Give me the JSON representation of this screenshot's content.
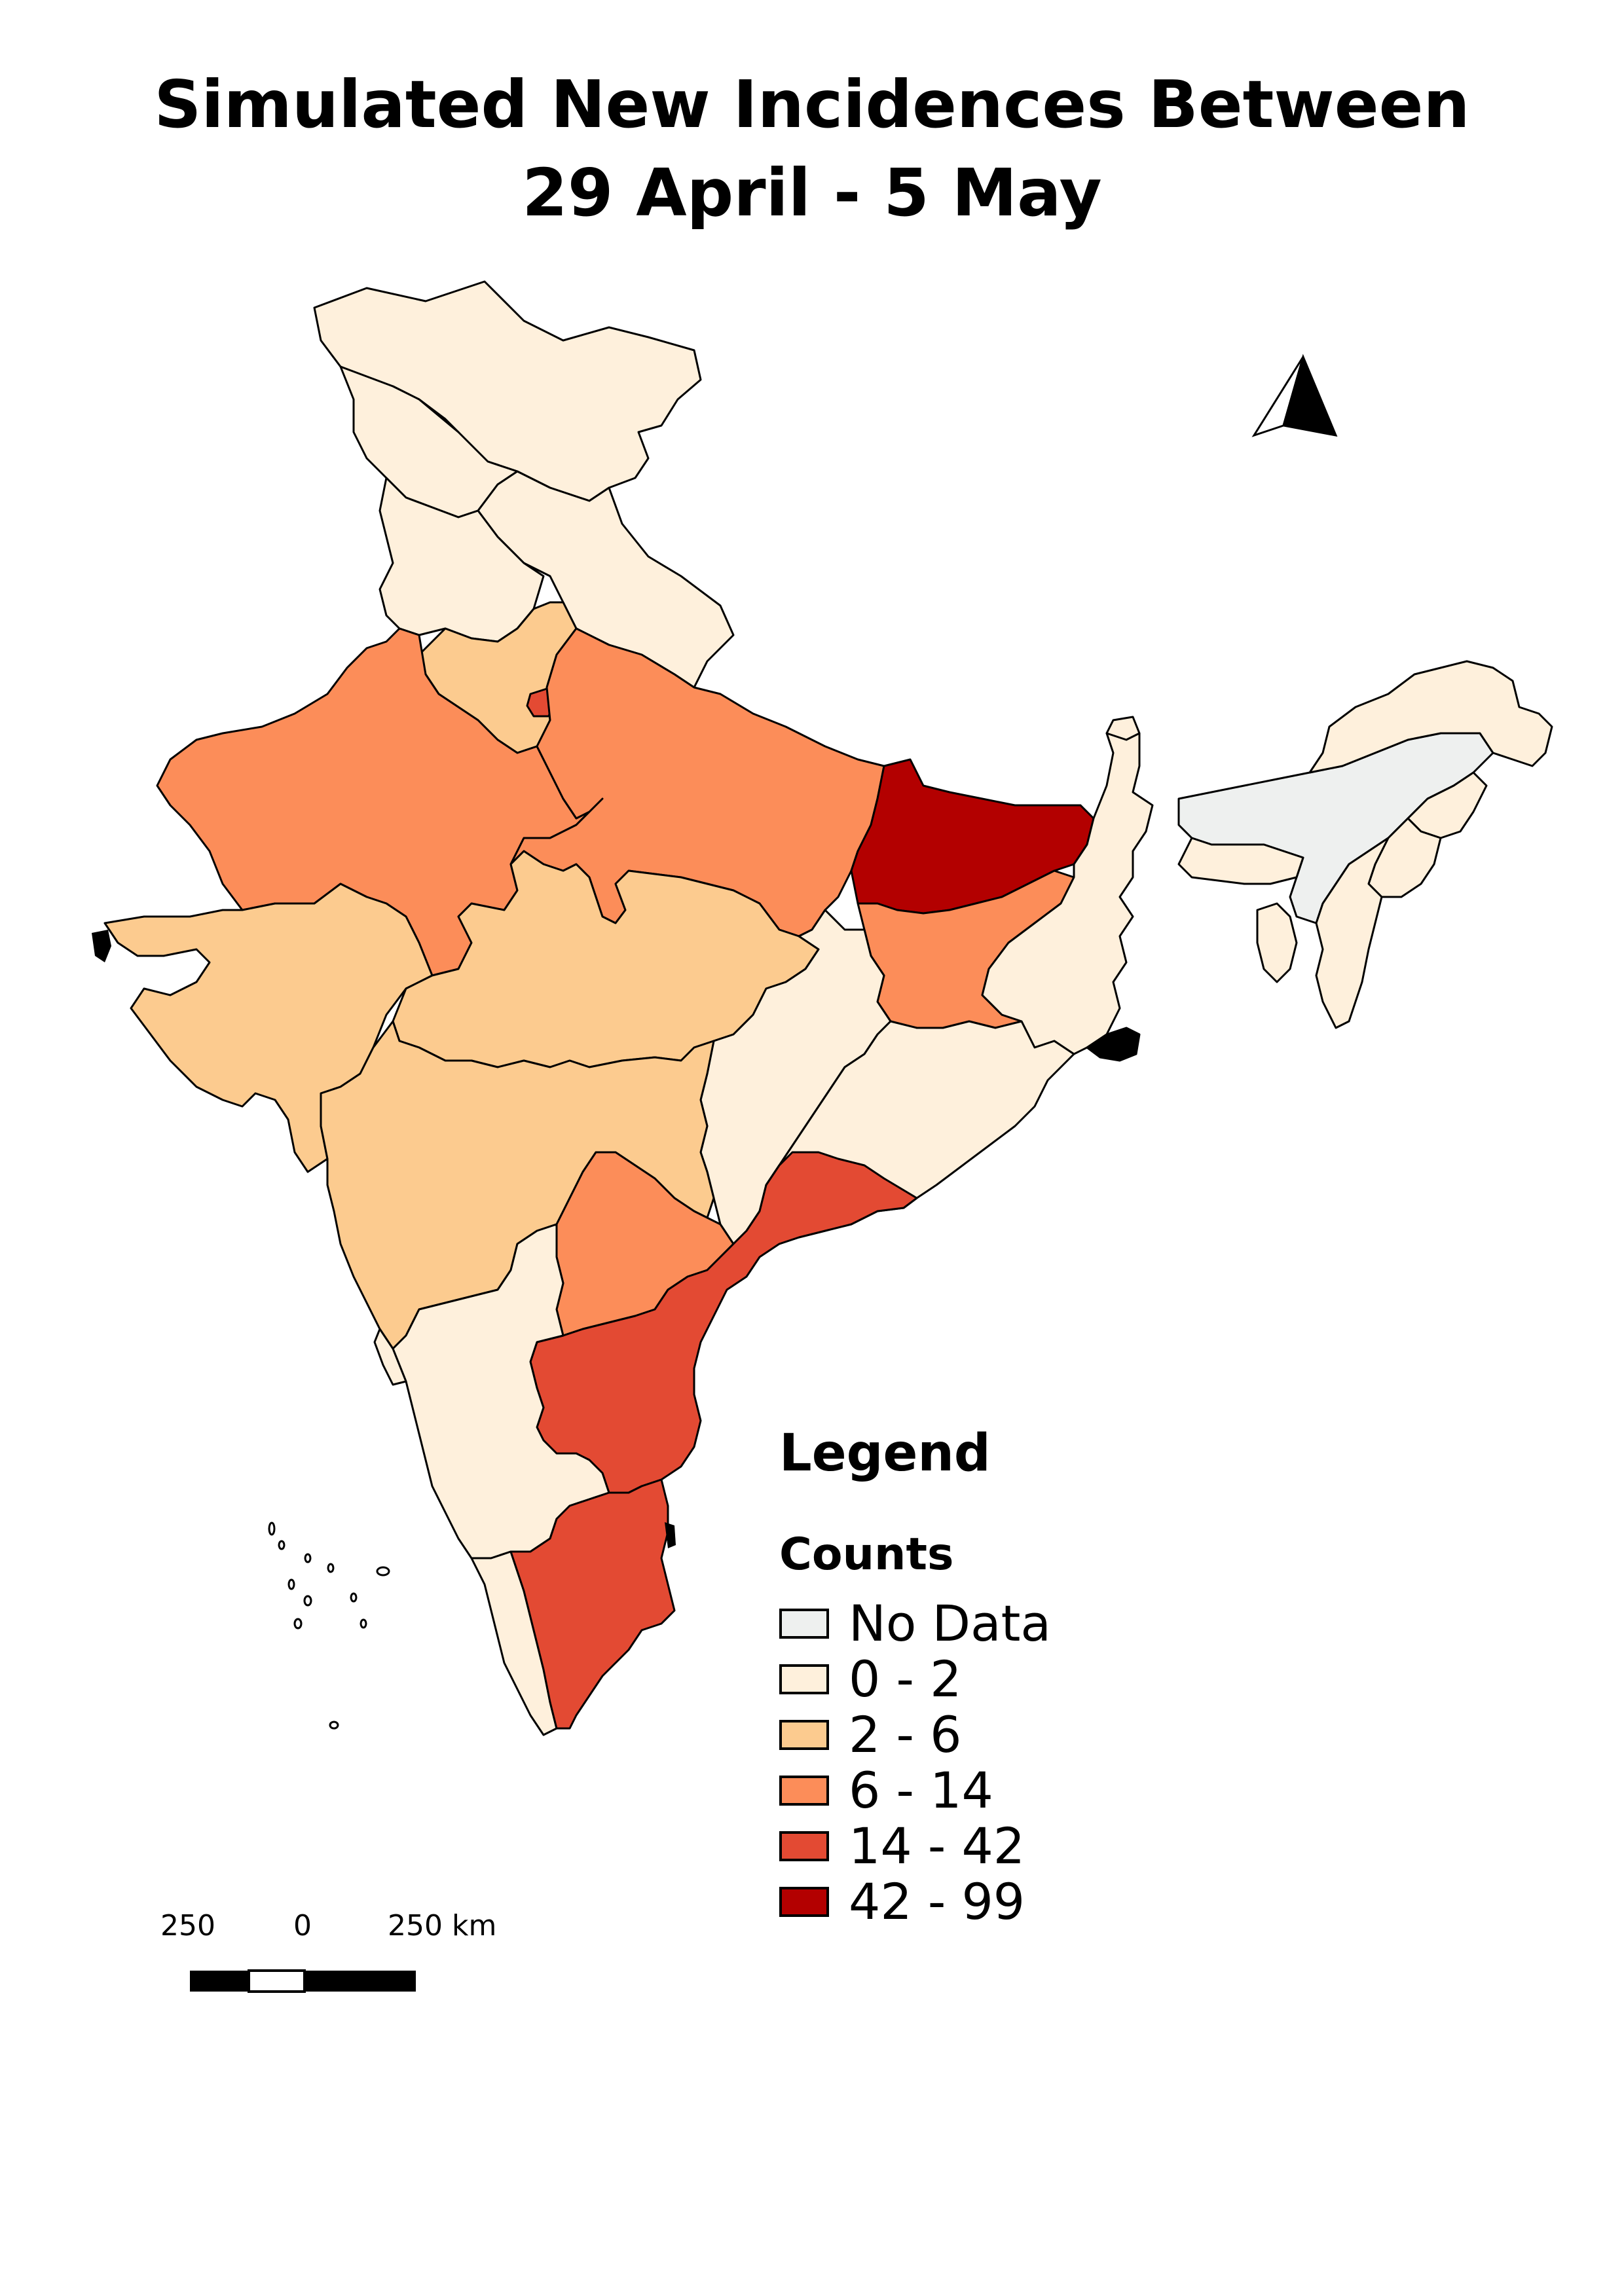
{
  "title": {
    "line1": "Simulated New Incidences Between",
    "line2": "29 April - 5 May"
  },
  "legend": {
    "heading": "Legend",
    "subheading": "Counts",
    "items": [
      {
        "label": "No Data",
        "color": "#eef0ef"
      },
      {
        "label": " 0 - 2",
        "color": "#fef0dc"
      },
      {
        "label": " 2 - 6",
        "color": "#fccb8f"
      },
      {
        "label": " 6 - 14",
        "color": "#fc8d59"
      },
      {
        "label": " 14 - 42",
        "color": "#e34a33"
      },
      {
        "label": " 42 - 99",
        "color": "#b30000"
      }
    ]
  },
  "scale_bar": {
    "labels": [
      "250",
      "0",
      "250 km"
    ]
  },
  "north_arrow": {
    "icon": "north-arrow-icon"
  },
  "regions": [
    {
      "name": "Jammu and Kashmir",
      "bin": " 0 - 2"
    },
    {
      "name": "Himachal Pradesh",
      "bin": " 0 - 2"
    },
    {
      "name": "Punjab",
      "bin": " 0 - 2"
    },
    {
      "name": "Uttarakhand",
      "bin": " 0 - 2"
    },
    {
      "name": "Haryana",
      "bin": " 2 - 6"
    },
    {
      "name": "Delhi",
      "bin": " 14 - 42"
    },
    {
      "name": "Rajasthan",
      "bin": " 6 - 14"
    },
    {
      "name": "Uttar Pradesh",
      "bin": " 6 - 14"
    },
    {
      "name": "Bihar",
      "bin": " 42 - 99"
    },
    {
      "name": "Jharkhand",
      "bin": " 6 - 14"
    },
    {
      "name": "Gujarat",
      "bin": " 2 - 6"
    },
    {
      "name": "Madhya Pradesh",
      "bin": " 2 - 6"
    },
    {
      "name": "Maharashtra",
      "bin": " 2 - 6"
    },
    {
      "name": "Chhattisgarh",
      "bin": " 0 - 2"
    },
    {
      "name": "Odisha",
      "bin": " 0 - 2"
    },
    {
      "name": "West Bengal",
      "bin": " 0 - 2"
    },
    {
      "name": "Telangana",
      "bin": " 6 - 14"
    },
    {
      "name": "Andhra Pradesh",
      "bin": " 14 - 42"
    },
    {
      "name": "Karnataka",
      "bin": " 0 - 2"
    },
    {
      "name": "Goa",
      "bin": " 0 - 2"
    },
    {
      "name": "Kerala",
      "bin": " 0 - 2"
    },
    {
      "name": "Tamil Nadu",
      "bin": " 14 - 42"
    },
    {
      "name": "Sikkim",
      "bin": " 0 - 2"
    },
    {
      "name": "Assam",
      "bin": "No Data"
    },
    {
      "name": "Arunachal Pradesh",
      "bin": " 0 - 2"
    },
    {
      "name": "Nagaland",
      "bin": " 0 - 2"
    },
    {
      "name": "Manipur",
      "bin": " 0 - 2"
    },
    {
      "name": "Mizoram",
      "bin": " 0 - 2"
    },
    {
      "name": "Tripura",
      "bin": " 0 - 2"
    },
    {
      "name": "Meghalaya",
      "bin": " 0 - 2"
    }
  ]
}
